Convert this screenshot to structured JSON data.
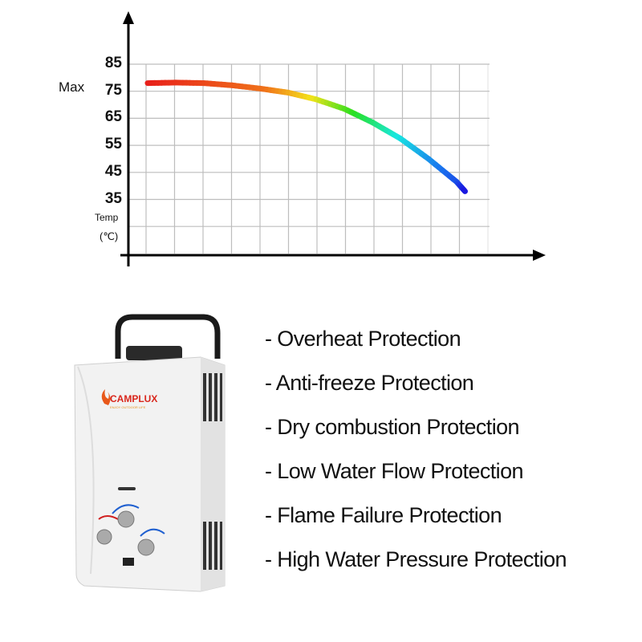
{
  "chart_data": {
    "type": "line",
    "title": "",
    "xlabel": "",
    "ylabel": "Temp (℃)",
    "ylabel_lines": [
      "Temp",
      "(℃)"
    ],
    "y_ticks": [
      "85",
      "75",
      "65",
      "55",
      "45",
      "35"
    ],
    "max_marker_label": "Max",
    "max_marker_value": 75,
    "ylim": [
      15,
      85
    ],
    "xlim": [
      0,
      12.4
    ],
    "grid": true,
    "x": [
      0,
      1,
      2,
      3,
      4,
      5,
      6,
      7,
      8,
      9,
      10,
      11,
      11.3
    ],
    "y": [
      78,
      78.2,
      78,
      77.2,
      76,
      74.5,
      72,
      68.5,
      63.5,
      57.5,
      50,
      41.5,
      38
    ],
    "color_gradient": [
      "#e8201a",
      "#f07a1a",
      "#f4e21a",
      "#28e020",
      "#18e8e0",
      "#1a78ee",
      "#1a18e0"
    ]
  },
  "product": {
    "brand": "CAMPLUX",
    "tagline": "ENJOY OUTDOOR LIFE"
  },
  "features": [
    "- Overheat Protection",
    "- Anti-freeze Protection",
    "- Dry combustion Protection",
    "- Low Water Flow Protection",
    "- Flame Failure Protection",
    "- High Water Pressure Protection"
  ]
}
